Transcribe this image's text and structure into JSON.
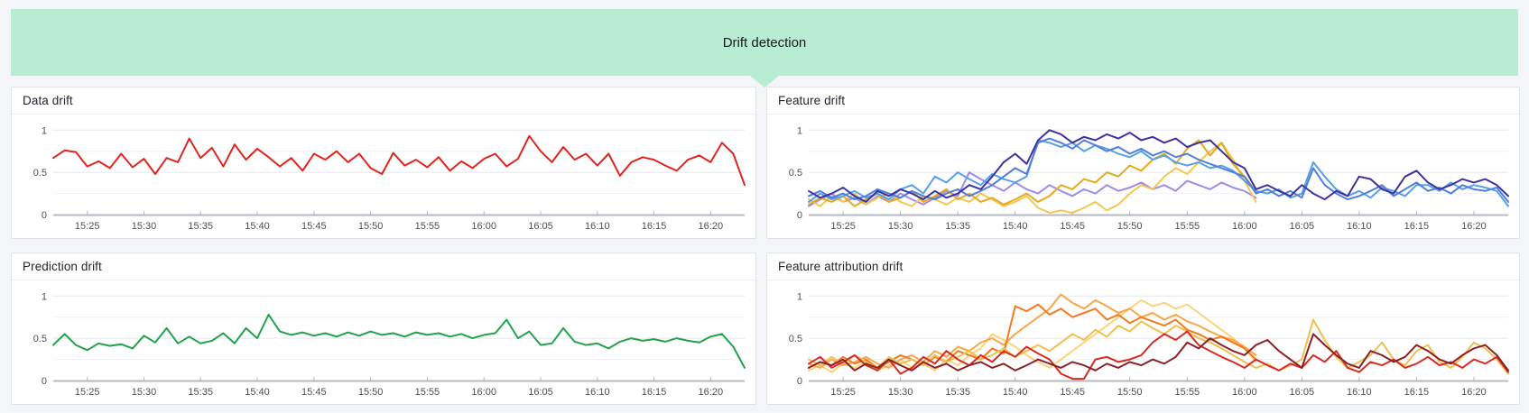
{
  "header": {
    "title": "Drift detection"
  },
  "colors": {
    "banner_bg": "#b9edd3",
    "page_bg": "#f4f5f8",
    "panel_border": "#e0e3e9",
    "grid_major": "#e3e5ea",
    "grid_minor": "#f0f1f4",
    "axis_line": "#b4b8c1",
    "tick_text": "#4a4f57"
  },
  "axes": {
    "x_start_min": 0,
    "x_end_min": 61,
    "x_start_label": "15:22",
    "x_end_label": "16:23",
    "x_ticks": [
      {
        "label": "15:25",
        "min": 3
      },
      {
        "label": "15:30",
        "min": 8
      },
      {
        "label": "15:35",
        "min": 13
      },
      {
        "label": "15:40",
        "min": 18
      },
      {
        "label": "15:45",
        "min": 23
      },
      {
        "label": "15:50",
        "min": 28
      },
      {
        "label": "15:55",
        "min": 33
      },
      {
        "label": "16:00",
        "min": 38
      },
      {
        "label": "16:05",
        "min": 43
      },
      {
        "label": "16:10",
        "min": 48
      },
      {
        "label": "16:15",
        "min": 53
      },
      {
        "label": "16:20",
        "min": 58
      }
    ],
    "y_ticks": [
      {
        "label": "0",
        "value": 0
      },
      {
        "label": "0.5",
        "value": 0.5
      },
      {
        "label": "1",
        "value": 1
      }
    ],
    "y_grid": [
      0.25,
      0.5,
      0.75,
      1
    ],
    "grid": true,
    "legend": "none"
  },
  "panels": [
    {
      "title": "Data drift",
      "chart_data": {
        "type": "line",
        "ylim": [
          0,
          1.12
        ],
        "series": [
          {
            "name": "data-drift",
            "color": "#e02420",
            "start_min": 0,
            "step_min": 1,
            "values": [
              0.67,
              0.76,
              0.74,
              0.57,
              0.63,
              0.55,
              0.72,
              0.56,
              0.66,
              0.48,
              0.67,
              0.62,
              0.9,
              0.67,
              0.79,
              0.57,
              0.83,
              0.65,
              0.78,
              0.68,
              0.57,
              0.67,
              0.52,
              0.72,
              0.65,
              0.75,
              0.62,
              0.72,
              0.55,
              0.48,
              0.73,
              0.58,
              0.65,
              0.56,
              0.68,
              0.52,
              0.63,
              0.55,
              0.66,
              0.72,
              0.57,
              0.66,
              0.93,
              0.75,
              0.62,
              0.8,
              0.65,
              0.72,
              0.58,
              0.72,
              0.46,
              0.62,
              0.68,
              0.65,
              0.58,
              0.52,
              0.65,
              0.7,
              0.62,
              0.85,
              0.72,
              0.35
            ]
          }
        ]
      }
    },
    {
      "title": "Feature drift",
      "chart_data": {
        "type": "line",
        "ylim": [
          0,
          1.12
        ],
        "series": [
          {
            "name": "lavender",
            "color": "#9e8ce6",
            "start_min": 0,
            "step_min": 1,
            "values": [
              0.1,
              0.18,
              0.25,
              0.15,
              0.2,
              0.12,
              0.22,
              0.15,
              0.25,
              0.18,
              0.12,
              0.2,
              0.28,
              0.22,
              0.5,
              0.42,
              0.35,
              0.28,
              0.38,
              0.3,
              0.25,
              0.35,
              0.28,
              0.22,
              0.3,
              0.25,
              0.35,
              0.28,
              0.32,
              0.38,
              0.3,
              0.35,
              0.28,
              0.4,
              0.35,
              0.3,
              0.38,
              0.32,
              0.28,
              0.2
            ]
          },
          {
            "name": "light-gold",
            "color": "#f3c74f",
            "start_min": 0,
            "step_min": 1,
            "values": [
              0.18,
              0.1,
              0.22,
              0.15,
              0.25,
              0.12,
              0.2,
              0.25,
              0.15,
              0.1,
              0.22,
              0.18,
              0.12,
              0.2,
              0.15,
              0.25,
              0.18,
              0.1,
              0.15,
              0.22,
              0.08,
              0.02,
              0.05,
              0.02,
              0.08,
              0.15,
              0.05,
              0.12,
              0.25,
              0.35,
              0.3,
              0.45,
              0.55,
              0.48,
              0.62,
              0.75,
              0.85,
              0.65,
              0.4,
              0.15
            ]
          },
          {
            "name": "gold",
            "color": "#e5a91c",
            "start_min": 0,
            "step_min": 1,
            "values": [
              0.12,
              0.2,
              0.15,
              0.22,
              0.1,
              0.18,
              0.25,
              0.15,
              0.2,
              0.28,
              0.15,
              0.22,
              0.3,
              0.18,
              0.25,
              0.15,
              0.2,
              0.12,
              0.18,
              0.25,
              0.15,
              0.22,
              0.35,
              0.3,
              0.42,
              0.38,
              0.5,
              0.45,
              0.58,
              0.52,
              0.65,
              0.72,
              0.6,
              0.78,
              0.88,
              0.7,
              0.85,
              0.6,
              0.45,
              0.28
            ]
          },
          {
            "name": "light-blue",
            "color": "#57a0e8",
            "start_min": 0,
            "step_min": 1,
            "values": [
              0.15,
              0.25,
              0.18,
              0.22,
              0.28,
              0.2,
              0.25,
              0.18,
              0.3,
              0.35,
              0.25,
              0.45,
              0.38,
              0.5,
              0.42,
              0.35,
              0.48,
              0.42,
              0.38,
              0.45,
              0.88,
              0.85,
              0.8,
              0.85,
              0.75,
              0.82,
              0.78,
              0.72,
              0.68,
              0.75,
              0.65,
              0.7,
              0.62,
              0.58,
              0.62,
              0.55,
              0.58,
              0.52,
              0.4,
              0.28,
              0.25,
              0.3,
              0.2,
              0.25,
              0.62,
              0.45,
              0.3,
              0.22,
              0.28,
              0.2,
              0.32,
              0.28,
              0.22,
              0.35,
              0.35,
              0.28,
              0.38,
              0.3,
              0.35,
              0.32,
              0.28,
              0.1
            ]
          },
          {
            "name": "blue",
            "color": "#4f7fdb",
            "start_min": 0,
            "step_min": 1,
            "values": [
              0.22,
              0.28,
              0.2,
              0.25,
              0.18,
              0.22,
              0.3,
              0.25,
              0.2,
              0.28,
              0.22,
              0.18,
              0.25,
              0.3,
              0.22,
              0.28,
              0.35,
              0.45,
              0.55,
              0.48,
              0.85,
              0.9,
              0.85,
              0.78,
              0.88,
              0.82,
              0.75,
              0.8,
              0.72,
              0.78,
              0.7,
              0.75,
              0.68,
              0.72,
              0.65,
              0.6,
              0.55,
              0.5,
              0.45,
              0.25,
              0.3,
              0.22,
              0.28,
              0.2,
              0.55,
              0.35,
              0.25,
              0.18,
              0.22,
              0.28,
              0.35,
              0.22,
              0.3,
              0.38,
              0.28,
              0.32,
              0.25,
              0.35,
              0.3,
              0.28,
              0.32,
              0.15
            ]
          },
          {
            "name": "indigo",
            "color": "#3f329f",
            "start_min": 0,
            "step_min": 1,
            "values": [
              0.28,
              0.2,
              0.25,
              0.32,
              0.22,
              0.15,
              0.28,
              0.22,
              0.3,
              0.25,
              0.18,
              0.28,
              0.2,
              0.25,
              0.35,
              0.3,
              0.45,
              0.62,
              0.72,
              0.6,
              0.88,
              1.0,
              0.95,
              0.85,
              0.92,
              0.88,
              0.95,
              0.9,
              0.97,
              0.88,
              0.92,
              0.85,
              0.9,
              0.8,
              0.85,
              0.88,
              0.75,
              0.62,
              0.55,
              0.3,
              0.35,
              0.28,
              0.22,
              0.35,
              0.25,
              0.18,
              0.28,
              0.22,
              0.45,
              0.42,
              0.3,
              0.25,
              0.45,
              0.52,
              0.38,
              0.3,
              0.35,
              0.42,
              0.38,
              0.42,
              0.35,
              0.22
            ]
          }
        ]
      }
    },
    {
      "title": "Prediction drift",
      "chart_data": {
        "type": "line",
        "ylim": [
          0,
          1.12
        ],
        "series": [
          {
            "name": "prediction-drift",
            "color": "#22a24c",
            "start_min": 0,
            "step_min": 1,
            "values": [
              0.42,
              0.55,
              0.42,
              0.36,
              0.44,
              0.41,
              0.43,
              0.38,
              0.53,
              0.45,
              0.62,
              0.44,
              0.52,
              0.44,
              0.47,
              0.56,
              0.44,
              0.62,
              0.5,
              0.78,
              0.58,
              0.54,
              0.57,
              0.53,
              0.56,
              0.52,
              0.57,
              0.53,
              0.58,
              0.54,
              0.56,
              0.52,
              0.57,
              0.54,
              0.56,
              0.52,
              0.55,
              0.5,
              0.54,
              0.56,
              0.72,
              0.5,
              0.58,
              0.42,
              0.44,
              0.62,
              0.46,
              0.42,
              0.44,
              0.38,
              0.46,
              0.5,
              0.47,
              0.49,
              0.46,
              0.5,
              0.47,
              0.45,
              0.52,
              0.55,
              0.4,
              0.15
            ]
          }
        ]
      }
    },
    {
      "title": "Feature attribution drift",
      "chart_data": {
        "type": "line",
        "ylim": [
          0,
          1.12
        ],
        "series": [
          {
            "name": "pale-yellow",
            "color": "#fdd27a",
            "start_min": 0,
            "step_min": 1,
            "values": [
              0.12,
              0.18,
              0.1,
              0.2,
              0.15,
              0.22,
              0.12,
              0.18,
              0.25,
              0.15,
              0.2,
              0.12,
              0.25,
              0.18,
              0.3,
              0.38,
              0.55,
              0.48,
              0.4,
              0.3,
              0.22,
              0.15,
              0.25,
              0.35,
              0.45,
              0.55,
              0.65,
              0.75,
              0.85,
              0.95,
              0.88,
              0.92,
              0.85,
              0.9,
              0.8,
              0.7,
              0.6,
              0.5,
              0.38,
              0.22
            ]
          },
          {
            "name": "light-orange",
            "color": "#f9a648",
            "start_min": 0,
            "step_min": 1,
            "values": [
              0.2,
              0.15,
              0.25,
              0.18,
              0.22,
              0.28,
              0.2,
              0.15,
              0.25,
              0.3,
              0.22,
              0.35,
              0.28,
              0.4,
              0.35,
              0.45,
              0.5,
              0.42,
              0.55,
              0.65,
              0.75,
              0.85,
              1.02,
              0.92,
              0.85,
              0.95,
              0.88,
              0.8,
              0.85,
              0.75,
              0.8,
              0.72,
              0.78,
              0.7,
              0.65,
              0.58,
              0.52,
              0.48,
              0.4,
              0.3
            ]
          },
          {
            "name": "orange",
            "color": "#f5791f",
            "start_min": 0,
            "step_min": 1,
            "values": [
              0.15,
              0.22,
              0.18,
              0.28,
              0.2,
              0.25,
              0.15,
              0.22,
              0.3,
              0.25,
              0.18,
              0.28,
              0.22,
              0.35,
              0.3,
              0.25,
              0.38,
              0.32,
              0.88,
              0.82,
              0.9,
              0.78,
              0.85,
              0.75,
              0.8,
              0.85,
              0.72,
              0.78,
              0.68,
              0.75,
              0.7,
              0.65,
              0.72,
              0.6,
              0.55,
              0.48,
              0.52,
              0.45,
              0.38,
              0.25
            ]
          },
          {
            "name": "gold",
            "color": "#eec04f",
            "start_min": 0,
            "step_min": 1,
            "values": [
              0.25,
              0.18,
              0.28,
              0.2,
              0.3,
              0.22,
              0.15,
              0.28,
              0.2,
              0.25,
              0.18,
              0.3,
              0.22,
              0.28,
              0.35,
              0.25,
              0.3,
              0.38,
              0.28,
              0.35,
              0.42,
              0.35,
              0.45,
              0.55,
              0.48,
              0.6,
              0.52,
              0.65,
              0.58,
              0.7,
              0.62,
              0.55,
              0.65,
              0.58,
              0.5,
              0.45,
              0.38,
              0.3,
              0.22,
              0.15,
              0.2,
              0.12,
              0.18,
              0.25,
              0.72,
              0.48,
              0.28,
              0.15,
              0.22,
              0.3,
              0.45,
              0.25,
              0.18,
              0.35,
              0.42,
              0.22,
              0.15,
              0.28,
              0.45,
              0.38,
              0.25,
              0.08
            ]
          },
          {
            "name": "red",
            "color": "#d92a22",
            "start_min": 0,
            "step_min": 1,
            "values": [
              0.2,
              0.28,
              0.15,
              0.22,
              0.3,
              0.18,
              0.12,
              0.25,
              0.08,
              0.15,
              0.28,
              0.2,
              0.35,
              0.25,
              0.18,
              0.3,
              0.22,
              0.35,
              0.28,
              0.4,
              0.32,
              0.25,
              0.08,
              0.02,
              0.02,
              0.25,
              0.28,
              0.22,
              0.25,
              0.3,
              0.45,
              0.55,
              0.48,
              0.58,
              0.42,
              0.35,
              0.28,
              0.22,
              0.15,
              0.25,
              0.18,
              0.12,
              0.2,
              0.15,
              0.3,
              0.22,
              0.35,
              0.15,
              0.1,
              0.22,
              0.18,
              0.25,
              0.15,
              0.2,
              0.28,
              0.18,
              0.22,
              0.15,
              0.25,
              0.2,
              0.28,
              0.1
            ]
          },
          {
            "name": "maroon",
            "color": "#8b2126",
            "start_min": 0,
            "step_min": 1,
            "values": [
              0.15,
              0.22,
              0.18,
              0.25,
              0.12,
              0.2,
              0.15,
              0.25,
              0.18,
              0.12,
              0.22,
              0.15,
              0.2,
              0.12,
              0.18,
              0.22,
              0.15,
              0.2,
              0.12,
              0.18,
              0.25,
              0.2,
              0.15,
              0.22,
              0.18,
              0.12,
              0.2,
              0.15,
              0.22,
              0.18,
              0.25,
              0.2,
              0.28,
              0.45,
              0.38,
              0.5,
              0.42,
              0.35,
              0.3,
              0.42,
              0.48,
              0.35,
              0.25,
              0.15,
              0.55,
              0.42,
              0.3,
              0.2,
              0.15,
              0.35,
              0.3,
              0.22,
              0.28,
              0.42,
              0.35,
              0.25,
              0.2,
              0.3,
              0.38,
              0.42,
              0.3,
              0.12
            ]
          }
        ]
      }
    }
  ]
}
